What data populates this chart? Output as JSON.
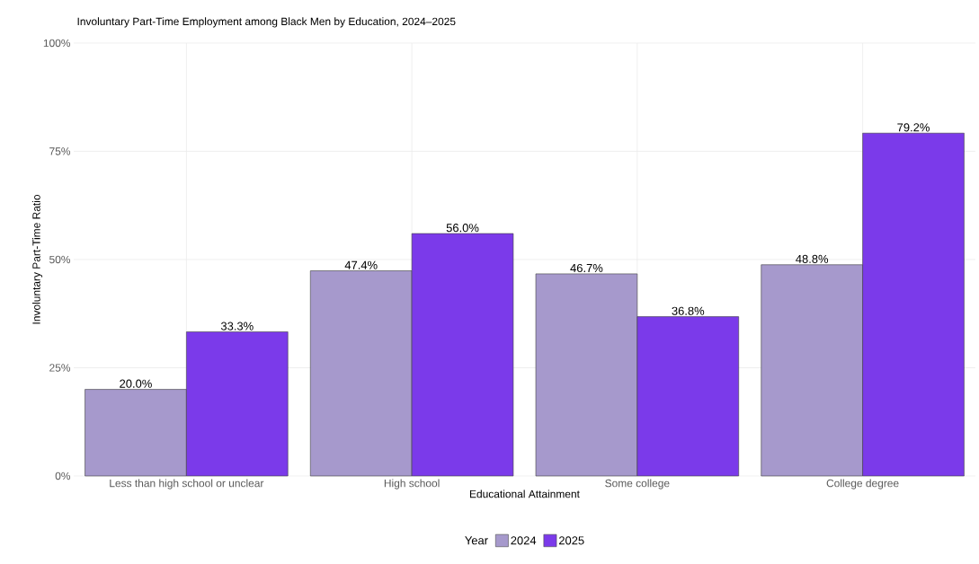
{
  "chart_data": {
    "type": "bar",
    "title": "Involuntary Part-Time Employment among Black Men by Education, 2024–2025",
    "xlabel": "Educational Attainment",
    "ylabel": "Involuntary Part-Time Ratio",
    "legend_title": "Year",
    "categories": [
      "Less than high school or unclear",
      "High school",
      "Some college",
      "College degree"
    ],
    "series": [
      {
        "name": "2024",
        "color": "#a699cc",
        "values": [
          20.0,
          47.4,
          46.7,
          48.8
        ],
        "value_labels": [
          "20.0%",
          "47.4%",
          "46.7%",
          "48.8%"
        ]
      },
      {
        "name": "2025",
        "color": "#7b3aea",
        "values": [
          33.3,
          56.0,
          36.8,
          79.2
        ],
        "value_labels": [
          "33.3%",
          "56.0%",
          "36.8%",
          "79.2%"
        ]
      }
    ],
    "ylim": [
      0,
      100
    ],
    "yticks": [
      {
        "value": 0,
        "label": "0%"
      },
      {
        "value": 25,
        "label": "25%"
      },
      {
        "value": 50,
        "label": "50%"
      },
      {
        "value": 75,
        "label": "75%"
      },
      {
        "value": 100,
        "label": "100%"
      }
    ],
    "grid": true,
    "legend": "bottom"
  }
}
